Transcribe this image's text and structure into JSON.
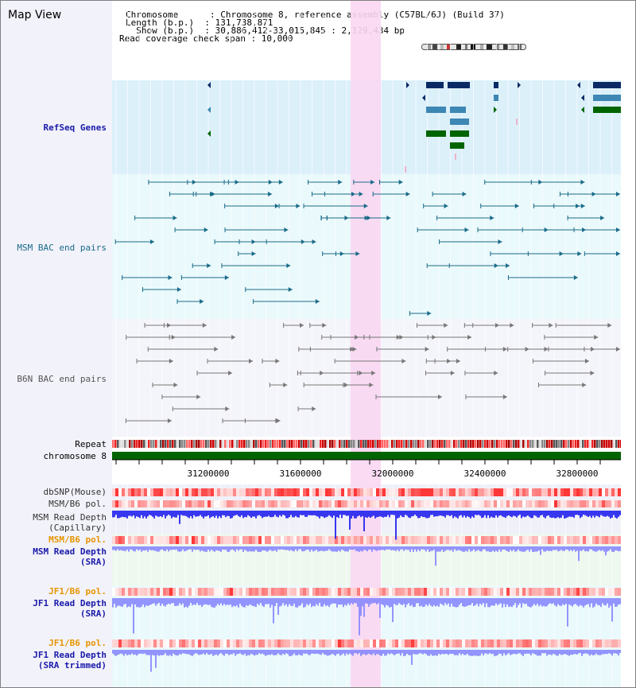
{
  "header": {
    "title": "Map View",
    "lines": [
      "Chromosome      : Chromosome 8, reference assembly (C57BL/6J) (Build 37)",
      "Length (b.p.)  : 131,738,871",
      "  Show (b.p.)  : 30,886,412-33,015,845 : 2,129,434 bp",
      "Read coverage check span : 10,000"
    ]
  },
  "tracks": {
    "refseq": "RefSeq Genes",
    "msm_bac": "MSM BAC end pairs",
    "b6n_bac": "B6N BAC end pairs",
    "repeat": "Repeat",
    "chromosome": "chromosome 8",
    "dbsnp": "dbSNP(Mouse)",
    "msm_pol": "MSM/B6 pol.",
    "msm_depth_cap_1": "MSM Read Depth",
    "msm_depth_cap_2": "(Capillary)",
    "msm_pol_2": "MSM/B6 pol.",
    "msm_depth_sra_1": "MSM Read Depth",
    "msm_depth_sra_2": "(SRA)",
    "jf1_pol_1": "JF1/B6 pol.",
    "jf1_depth_sra_1": "JF1 Read Depth",
    "jf1_depth_sra_2": "(SRA)",
    "jf1_pol_2": "JF1/B6 pol.",
    "jf1_depth_trim_1": "JF1 Read Depth",
    "jf1_depth_trim_2": "(SRA trimmed)"
  },
  "axis": {
    "ticks": [
      "31200000",
      "31600000",
      "32000000",
      "32400000",
      "32800000"
    ]
  },
  "colors": {
    "highlight": "#f9d7f2",
    "refseq_bg": "#dcf0fa",
    "refseq_dark": "#0a2a66",
    "refseq_mid": "#3d87b4",
    "refseq_green": "#006400",
    "msm_bac": "#1a6b8a",
    "b6n_bac": "#777777",
    "chromosome_bar": "#006400",
    "depth_blue": "#2222ee",
    "sra_blue": "#8888ff",
    "polymorphism_red": "#ff4444"
  }
}
